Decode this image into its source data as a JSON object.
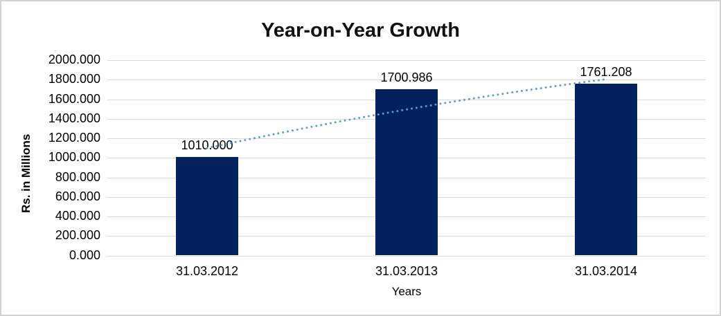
{
  "chart_data": {
    "type": "bar",
    "title": "Year-on-Year Growth",
    "xlabel": "Years",
    "ylabel": "Rs. in Millions",
    "categories": [
      "31.03.2012",
      "31.03.2013",
      "31.03.2014"
    ],
    "series": [
      {
        "name": "Rs. in Millions",
        "values": [
          1010.0,
          1700.986,
          1761.208
        ]
      }
    ],
    "value_labels": [
      "1010.000",
      "1700.986",
      "1761.208"
    ],
    "ylim": [
      0,
      2000
    ],
    "ytick_step": 200,
    "ytick_labels": [
      "0.000",
      "200.000",
      "400.000",
      "600.000",
      "800.000",
      "1000.000",
      "1200.000",
      "1400.000",
      "1600.000",
      "1800.000",
      "2000.000"
    ],
    "grid": true,
    "legend": "none",
    "trendline": {
      "style": "dotted",
      "color": "#5B9BD5",
      "values": [
        1100,
        1495,
        1805
      ]
    },
    "colors": {
      "bar": "#03215E",
      "gridline": "#D9D9D9",
      "text": "#000000",
      "frame_border": "#D1D1D1"
    }
  }
}
